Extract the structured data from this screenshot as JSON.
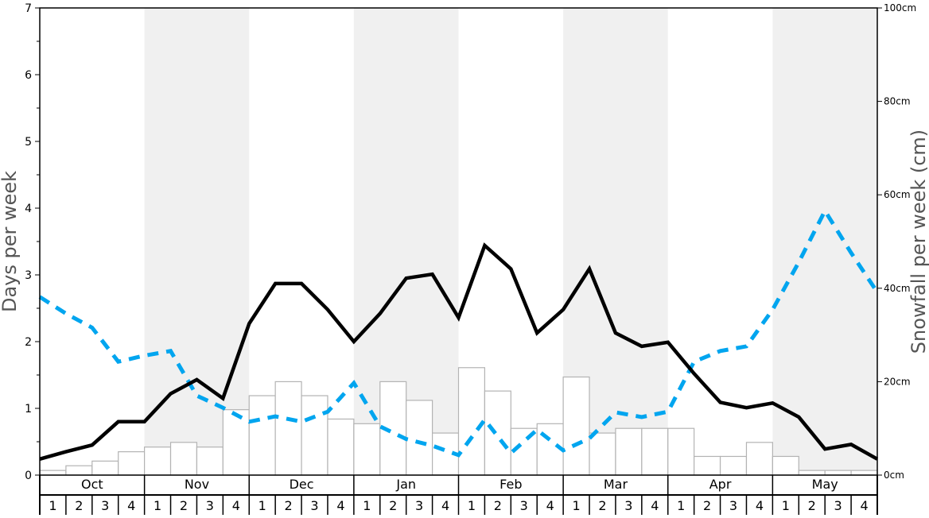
{
  "chart_data": {
    "type": "bar+line",
    "ylabel_left": "Days per week",
    "ylabel_right": "Snowfall per week (cm)",
    "ylim_left": [
      0,
      7
    ],
    "ylim_right": [
      0,
      100
    ],
    "left_ticks": [
      "0",
      "1",
      "2",
      "3",
      "4",
      "5",
      "6",
      "7"
    ],
    "right_ticks": [
      "0cm",
      "20cm",
      "40cm",
      "60cm",
      "80cm",
      "100cm"
    ],
    "months": [
      "Oct",
      "Nov",
      "Dec",
      "Jan",
      "Feb",
      "Mar",
      "Apr",
      "May"
    ],
    "weeks": [
      "1",
      "2",
      "3",
      "4"
    ],
    "shaded_months": [
      "Nov",
      "Jan",
      "Mar",
      "May"
    ],
    "colors": {
      "bars_fill": "#ffffff",
      "bars_stroke": "#b3b3b3",
      "line_solid": "#000000",
      "line_dashed": "#00a5ef",
      "shade": "#f0f0f0"
    },
    "snowfall_cm_bars": [
      1,
      2,
      3,
      5,
      6,
      7,
      6,
      14,
      17,
      20,
      17,
      12,
      11,
      20,
      16,
      9,
      23,
      18,
      10,
      11,
      21,
      9,
      10,
      10,
      10,
      4,
      4,
      7,
      4,
      1,
      1,
      1
    ],
    "solid_line_days": [
      0.24,
      0.35,
      0.45,
      0.8,
      0.8,
      1.22,
      1.43,
      1.15,
      2.27,
      2.87,
      2.87,
      2.48,
      2.0,
      2.42,
      2.95,
      3.01,
      2.36,
      3.44,
      3.09,
      2.13,
      2.48,
      3.09,
      2.13,
      1.93,
      1.99,
      1.52,
      1.09,
      1.01,
      1.08,
      0.87,
      0.39,
      0.46,
      0.24
    ],
    "dashed_line_days": [
      2.67,
      2.42,
      2.21,
      1.7,
      1.79,
      1.86,
      1.19,
      1.01,
      0.8,
      0.88,
      0.8,
      0.95,
      1.38,
      0.73,
      0.54,
      0.44,
      0.3,
      0.83,
      0.33,
      0.68,
      0.37,
      0.55,
      0.94,
      0.87,
      0.95,
      1.7,
      1.86,
      1.93,
      2.48,
      3.19,
      3.96,
      3.33,
      2.74
    ],
    "grid": false
  }
}
